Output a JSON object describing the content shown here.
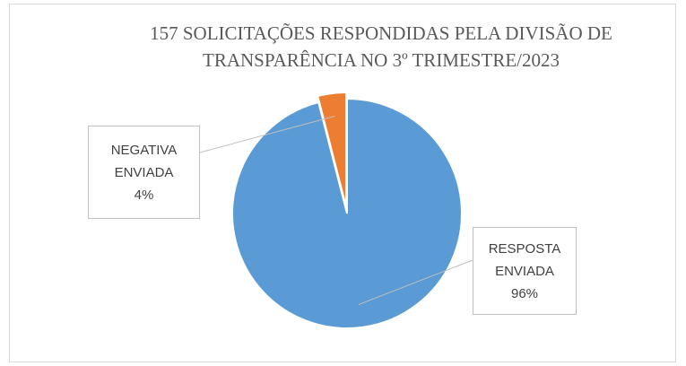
{
  "chart_data": {
    "type": "pie",
    "title": "157 SOLICITAÇÕES RESPONDIDAS PELA DIVISÃO DE TRANSPARÊNCIA NO 3º TRIMESTRE/2023",
    "categories": [
      "RESPOSTA ENVIADA",
      "NEGATIVA ENVIADA"
    ],
    "values": [
      96,
      4
    ],
    "value_labels": [
      "96%",
      "4%"
    ],
    "colors": [
      "#5b9bd5",
      "#ed7d31"
    ]
  }
}
